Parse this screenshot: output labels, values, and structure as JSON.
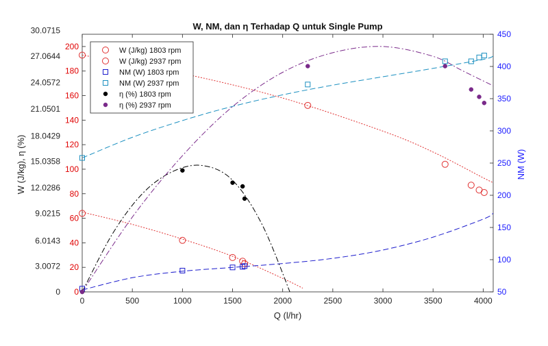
{
  "chart_data": {
    "type": "line",
    "title": "W, NM, dan η Terhadap Q untuk Single Pump",
    "xlabel": "Q (l/hr)",
    "ylabel_left": "W (J/kg), η (%)",
    "ylabel_right": "NM (W)",
    "xlim": [
      0,
      4100
    ],
    "ylim_left": [
      0,
      210
    ],
    "ylim_right": [
      50,
      450
    ],
    "x_ticks": [
      0,
      500,
      1000,
      1500,
      2000,
      2500,
      3000,
      3500,
      4000
    ],
    "y_left_ticks": [
      0,
      20,
      40,
      60,
      80,
      100,
      120,
      140,
      160,
      180,
      200
    ],
    "y_right_ticks": [
      50,
      100,
      150,
      200,
      250,
      300,
      350,
      400,
      450
    ],
    "eta_tick_labels": [
      "0",
      "3.0072",
      "6.0143",
      "9.0215",
      "12.0286",
      "15.0358",
      "18.0429",
      "21.0501",
      "24.0572",
      "27.0644",
      "30.0715"
    ],
    "eta_tick_positions_w": [
      0,
      21,
      41.5,
      64,
      85,
      106.5,
      127,
      149,
      170.5,
      192,
      213
    ],
    "grid": false,
    "legend_position": "top-left",
    "colors": {
      "left_axis": "#e00000",
      "right_axis": "#1a1aff",
      "w1803": "#e03030",
      "w2937": "#e03030",
      "nm1803": "#1a1acc",
      "nm2937": "#1a8fc0",
      "eta1803": "#000000",
      "eta2937": "#7a2a8a"
    },
    "series": [
      {
        "name": "W (J/kg) 1803 rpm",
        "axis": "left",
        "marker": "circle-open",
        "color": "#e03030",
        "x": [
          0,
          1000,
          1500,
          1600,
          1620
        ],
        "y": [
          64,
          42,
          28,
          25,
          23
        ],
        "fit_x": [
          0,
          500,
          1000,
          1500,
          2000,
          2200
        ],
        "fit_y": [
          65,
          55,
          43,
          29,
          11,
          3
        ]
      },
      {
        "name": "W (J/kg) 2937 rpm",
        "axis": "left",
        "marker": "circle-open",
        "color": "#e03030",
        "x": [
          0,
          2250,
          3620,
          3880,
          3960,
          4010
        ],
        "y": [
          193,
          152,
          104,
          87,
          83,
          81
        ],
        "fit_x": [
          0,
          1000,
          2000,
          3000,
          3500,
          4000,
          4100
        ],
        "fit_y": [
          193,
          178,
          158,
          131,
          114,
          93,
          89
        ]
      },
      {
        "name": "NM (W) 1803 rpm",
        "axis": "right",
        "marker": "square-open",
        "color": "#1a1acc",
        "x": [
          0,
          1000,
          1500,
          1600,
          1620
        ],
        "y": [
          55,
          83,
          88,
          89,
          90
        ],
        "fit_x": [
          0,
          500,
          1000,
          1500,
          2000,
          2500,
          3000,
          3500,
          4000,
          4100
        ],
        "fit_y": [
          53,
          72,
          82,
          88,
          94,
          102,
          115,
          135,
          163,
          172
        ]
      },
      {
        "name": "NM (W) 2937 rpm",
        "axis": "right",
        "marker": "square-open",
        "color": "#1a8fc0",
        "x": [
          0,
          2250,
          3620,
          3880,
          3960,
          4010
        ],
        "y": [
          258,
          372,
          408,
          408,
          414,
          417
        ],
        "fit_x": [
          0,
          500,
          1000,
          1500,
          2000,
          2500,
          3000,
          3500,
          4000,
          4100
        ],
        "fit_y": [
          258,
          290,
          316,
          338,
          356,
          371,
          384,
          397,
          411,
          416
        ]
      },
      {
        "name": "η (%) 1803 rpm",
        "axis": "left",
        "marker": "dot-filled",
        "color": "#000000",
        "x": [
          0,
          1000,
          1500,
          1600,
          1620
        ],
        "y": [
          0,
          99,
          89,
          86,
          76
        ],
        "fit_x": [
          0,
          300,
          600,
          900,
          1200,
          1500,
          1800,
          2100
        ],
        "fit_y": [
          0,
          47,
          80,
          98,
          103,
          91,
          54,
          -6
        ]
      },
      {
        "name": "η (%) 2937 rpm",
        "axis": "left",
        "marker": "dot-filled",
        "color": "#7a2a8a",
        "x": [
          0,
          2250,
          3620,
          3880,
          3960,
          4010
        ],
        "y": [
          0,
          184,
          184,
          165,
          159,
          154
        ],
        "fit_x": [
          0,
          500,
          1000,
          1500,
          2000,
          2500,
          3000,
          3500,
          3800,
          4100
        ],
        "fit_y": [
          0,
          61,
          111,
          151,
          179,
          195,
          200,
          192,
          180,
          168
        ]
      }
    ]
  }
}
